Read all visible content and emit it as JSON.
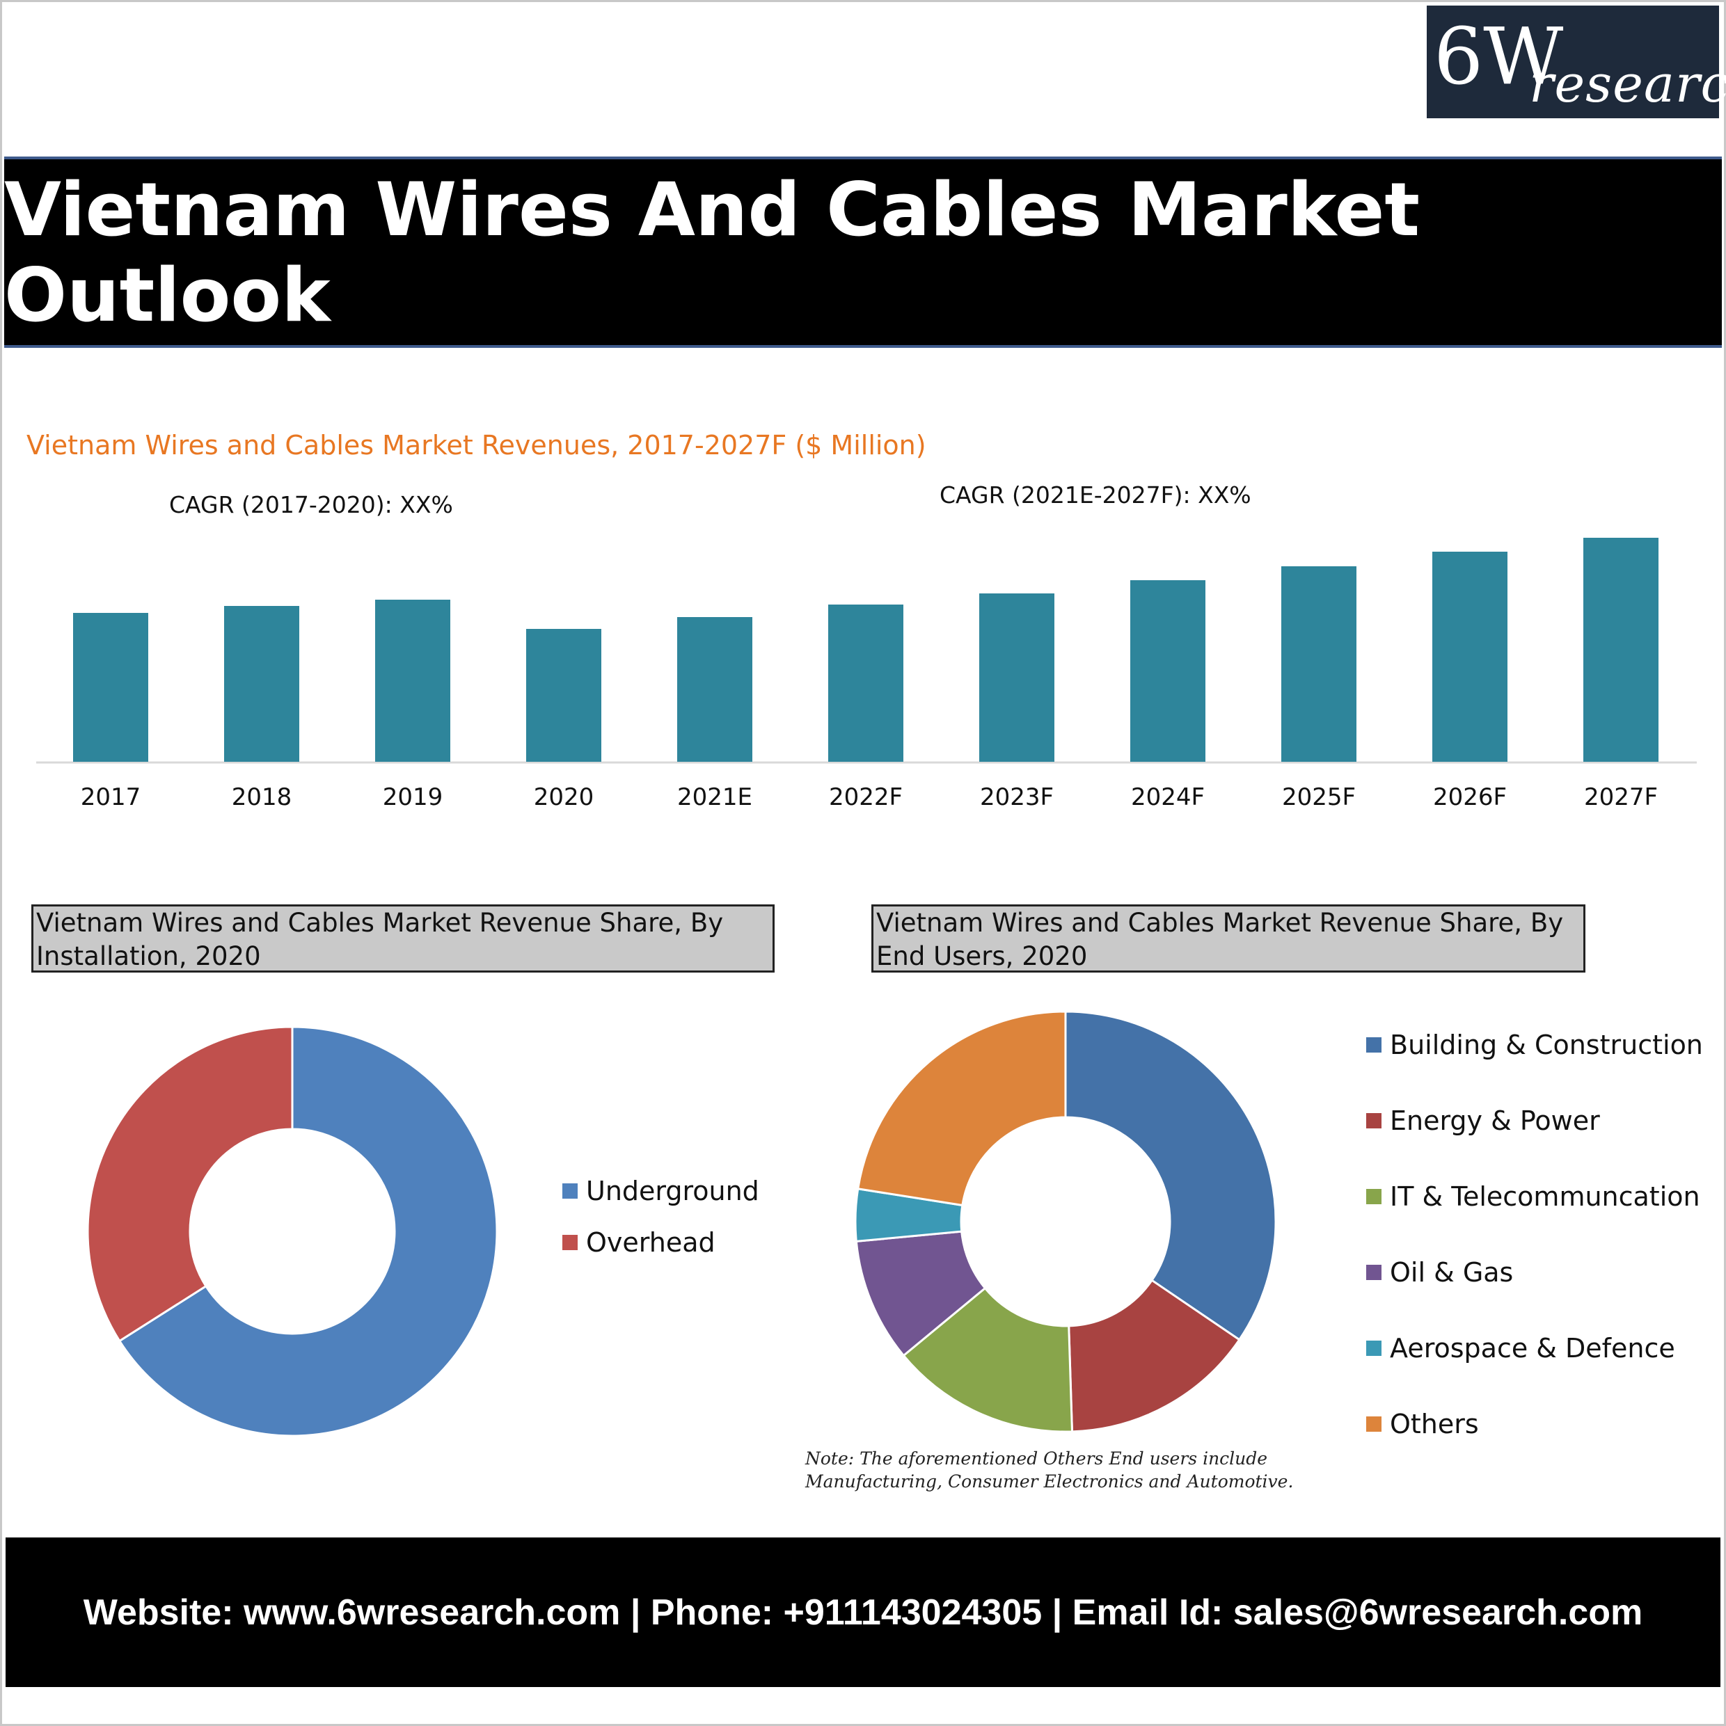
{
  "logo": {
    "main": "6W",
    "sub": "research"
  },
  "title": "Vietnam Wires And Cables Market Outlook",
  "colors": {
    "bar": "#2e859b",
    "underground": "#4f81bd",
    "overhead": "#c0504d",
    "building": "#4472a8",
    "energy": "#a84341",
    "it": "#88a54b",
    "oil": "#715591",
    "aero": "#3b99b5",
    "others": "#dd843b",
    "title_bar": "#000000",
    "accent_title": "#e87722"
  },
  "bar_chart": {
    "title": "Vietnam Wires and Cables Market Revenues, 2017-2027F ($ Million)",
    "cagr_left": "CAGR (2017-2020): XX%",
    "cagr_right": "CAGR (2021E-2027F): XX%"
  },
  "pie1": {
    "title": "Vietnam Wires and Cables Market Revenue Share, By Installation, 2020"
  },
  "pie2": {
    "title": "Vietnam Wires and Cables Market Revenue Share, By End Users, 2020"
  },
  "note": {
    "line1": "Note: The aforementioned Others End users include",
    "line2": "Manufacturing, Consumer Electronics and Automotive."
  },
  "footer": "Website: www.6wresearch.com | Phone: +911143024305 | Email Id: sales@6wresearch.com",
  "chart_data": [
    {
      "type": "bar",
      "title": "Vietnam Wires and Cables Market Revenues, 2017-2027F ($ Million)",
      "categories": [
        "2017",
        "2018",
        "2019",
        "2020",
        "2021E",
        "2022F",
        "2023F",
        "2024F",
        "2025F",
        "2026F",
        "2027F"
      ],
      "values": [
        214,
        224,
        233,
        191,
        208,
        226,
        242,
        261,
        281,
        302,
        322
      ],
      "ylim": [
        0,
        340
      ],
      "grid": false,
      "legend": "none"
    },
    {
      "type": "pie",
      "title": "Vietnam Wires and Cables Market Revenue Share, By Installation, 2020",
      "categories": [
        "Underground",
        "Overhead"
      ],
      "values": [
        66,
        34
      ],
      "legend": "right"
    },
    {
      "type": "pie",
      "title": "Vietnam Wires and Cables Market Revenue Share, By End Users, 2020",
      "categories": [
        "Building & Construction",
        "Energy & Power",
        "IT & Telecommuncation",
        "Oil & Gas",
        "Aerospace & Defence",
        "Others"
      ],
      "values": [
        34.5,
        15,
        14.5,
        9.5,
        4,
        22.5
      ],
      "legend": "right"
    }
  ]
}
